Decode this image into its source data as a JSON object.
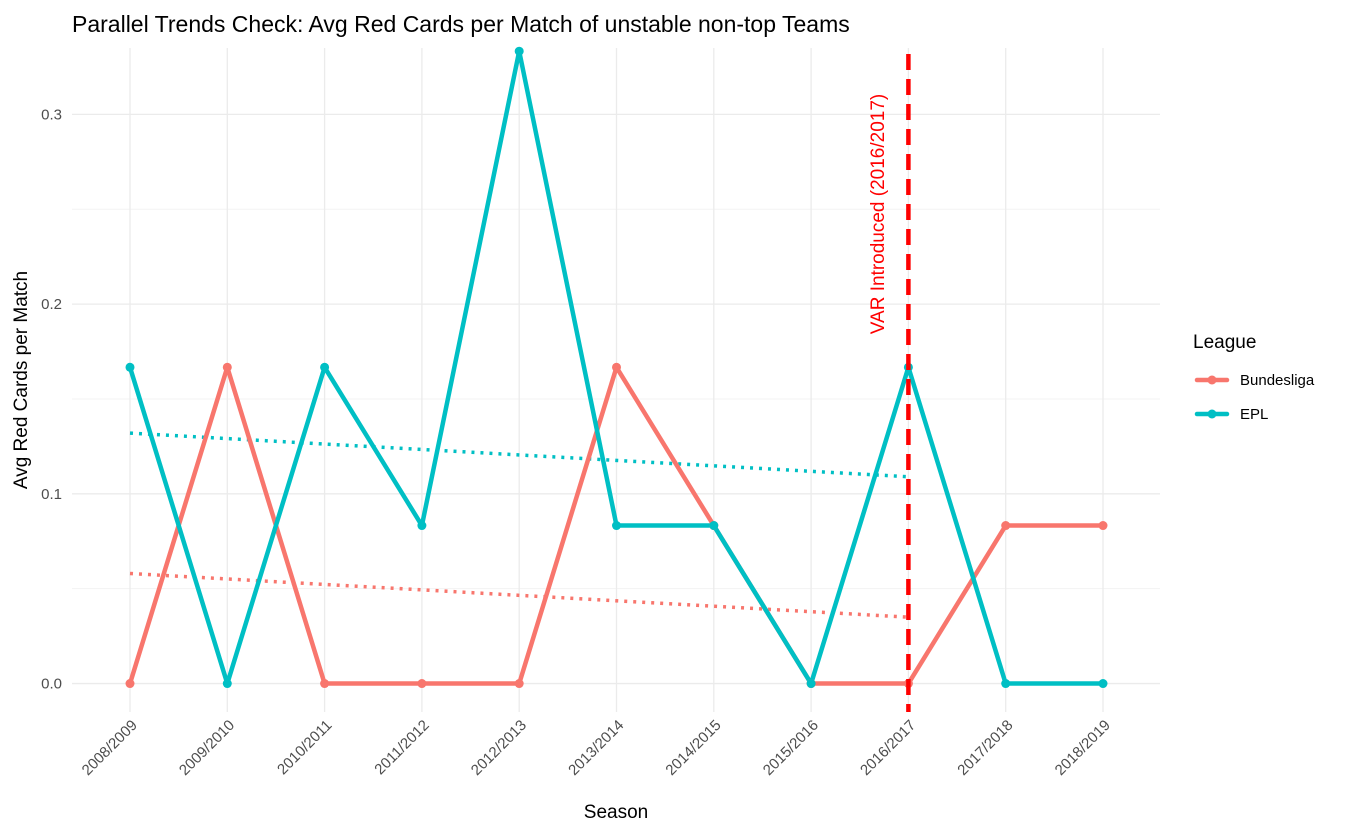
{
  "chart_data": {
    "type": "line",
    "title": "Parallel Trends Check: Avg Red Cards per Match of unstable non-top Teams",
    "xlabel": "Season",
    "ylabel": "Avg Red Cards per Match",
    "categories": [
      "2008/2009",
      "2009/2010",
      "2010/2011",
      "2011/2012",
      "2012/2013",
      "2013/2014",
      "2014/2015",
      "2015/2016",
      "2016/2017",
      "2017/2018",
      "2018/2019"
    ],
    "ylim": [
      -0.015,
      0.335
    ],
    "yticks": [
      0.0,
      0.1,
      0.2,
      0.3
    ],
    "ytick_labels": [
      "0.0",
      "0.1",
      "0.2",
      "0.3"
    ],
    "grid": true,
    "legend_title": "League",
    "legend_position": "right",
    "series": [
      {
        "name": "Bundesliga",
        "color": "#F8766D",
        "values": [
          0.0,
          0.1667,
          0.0,
          0.0,
          0.0,
          0.1667,
          0.0833,
          0.0,
          0.0,
          0.0833,
          0.0833
        ],
        "trend": {
          "from": "2008/2009",
          "to": "2016/2017",
          "start": 0.058,
          "end": 0.035
        }
      },
      {
        "name": "EPL",
        "color": "#00BFC4",
        "values": [
          0.1667,
          0.0,
          0.1667,
          0.0833,
          0.3333,
          0.0833,
          0.0833,
          0.0,
          0.1667,
          0.0,
          0.0
        ],
        "trend": {
          "from": "2008/2009",
          "to": "2016/2017",
          "start": 0.132,
          "end": 0.109
        }
      }
    ],
    "vline": {
      "at": "2016/2017",
      "label": "VAR Introduced (2016/2017)",
      "color": "#FF0000",
      "style": "dashed"
    }
  }
}
